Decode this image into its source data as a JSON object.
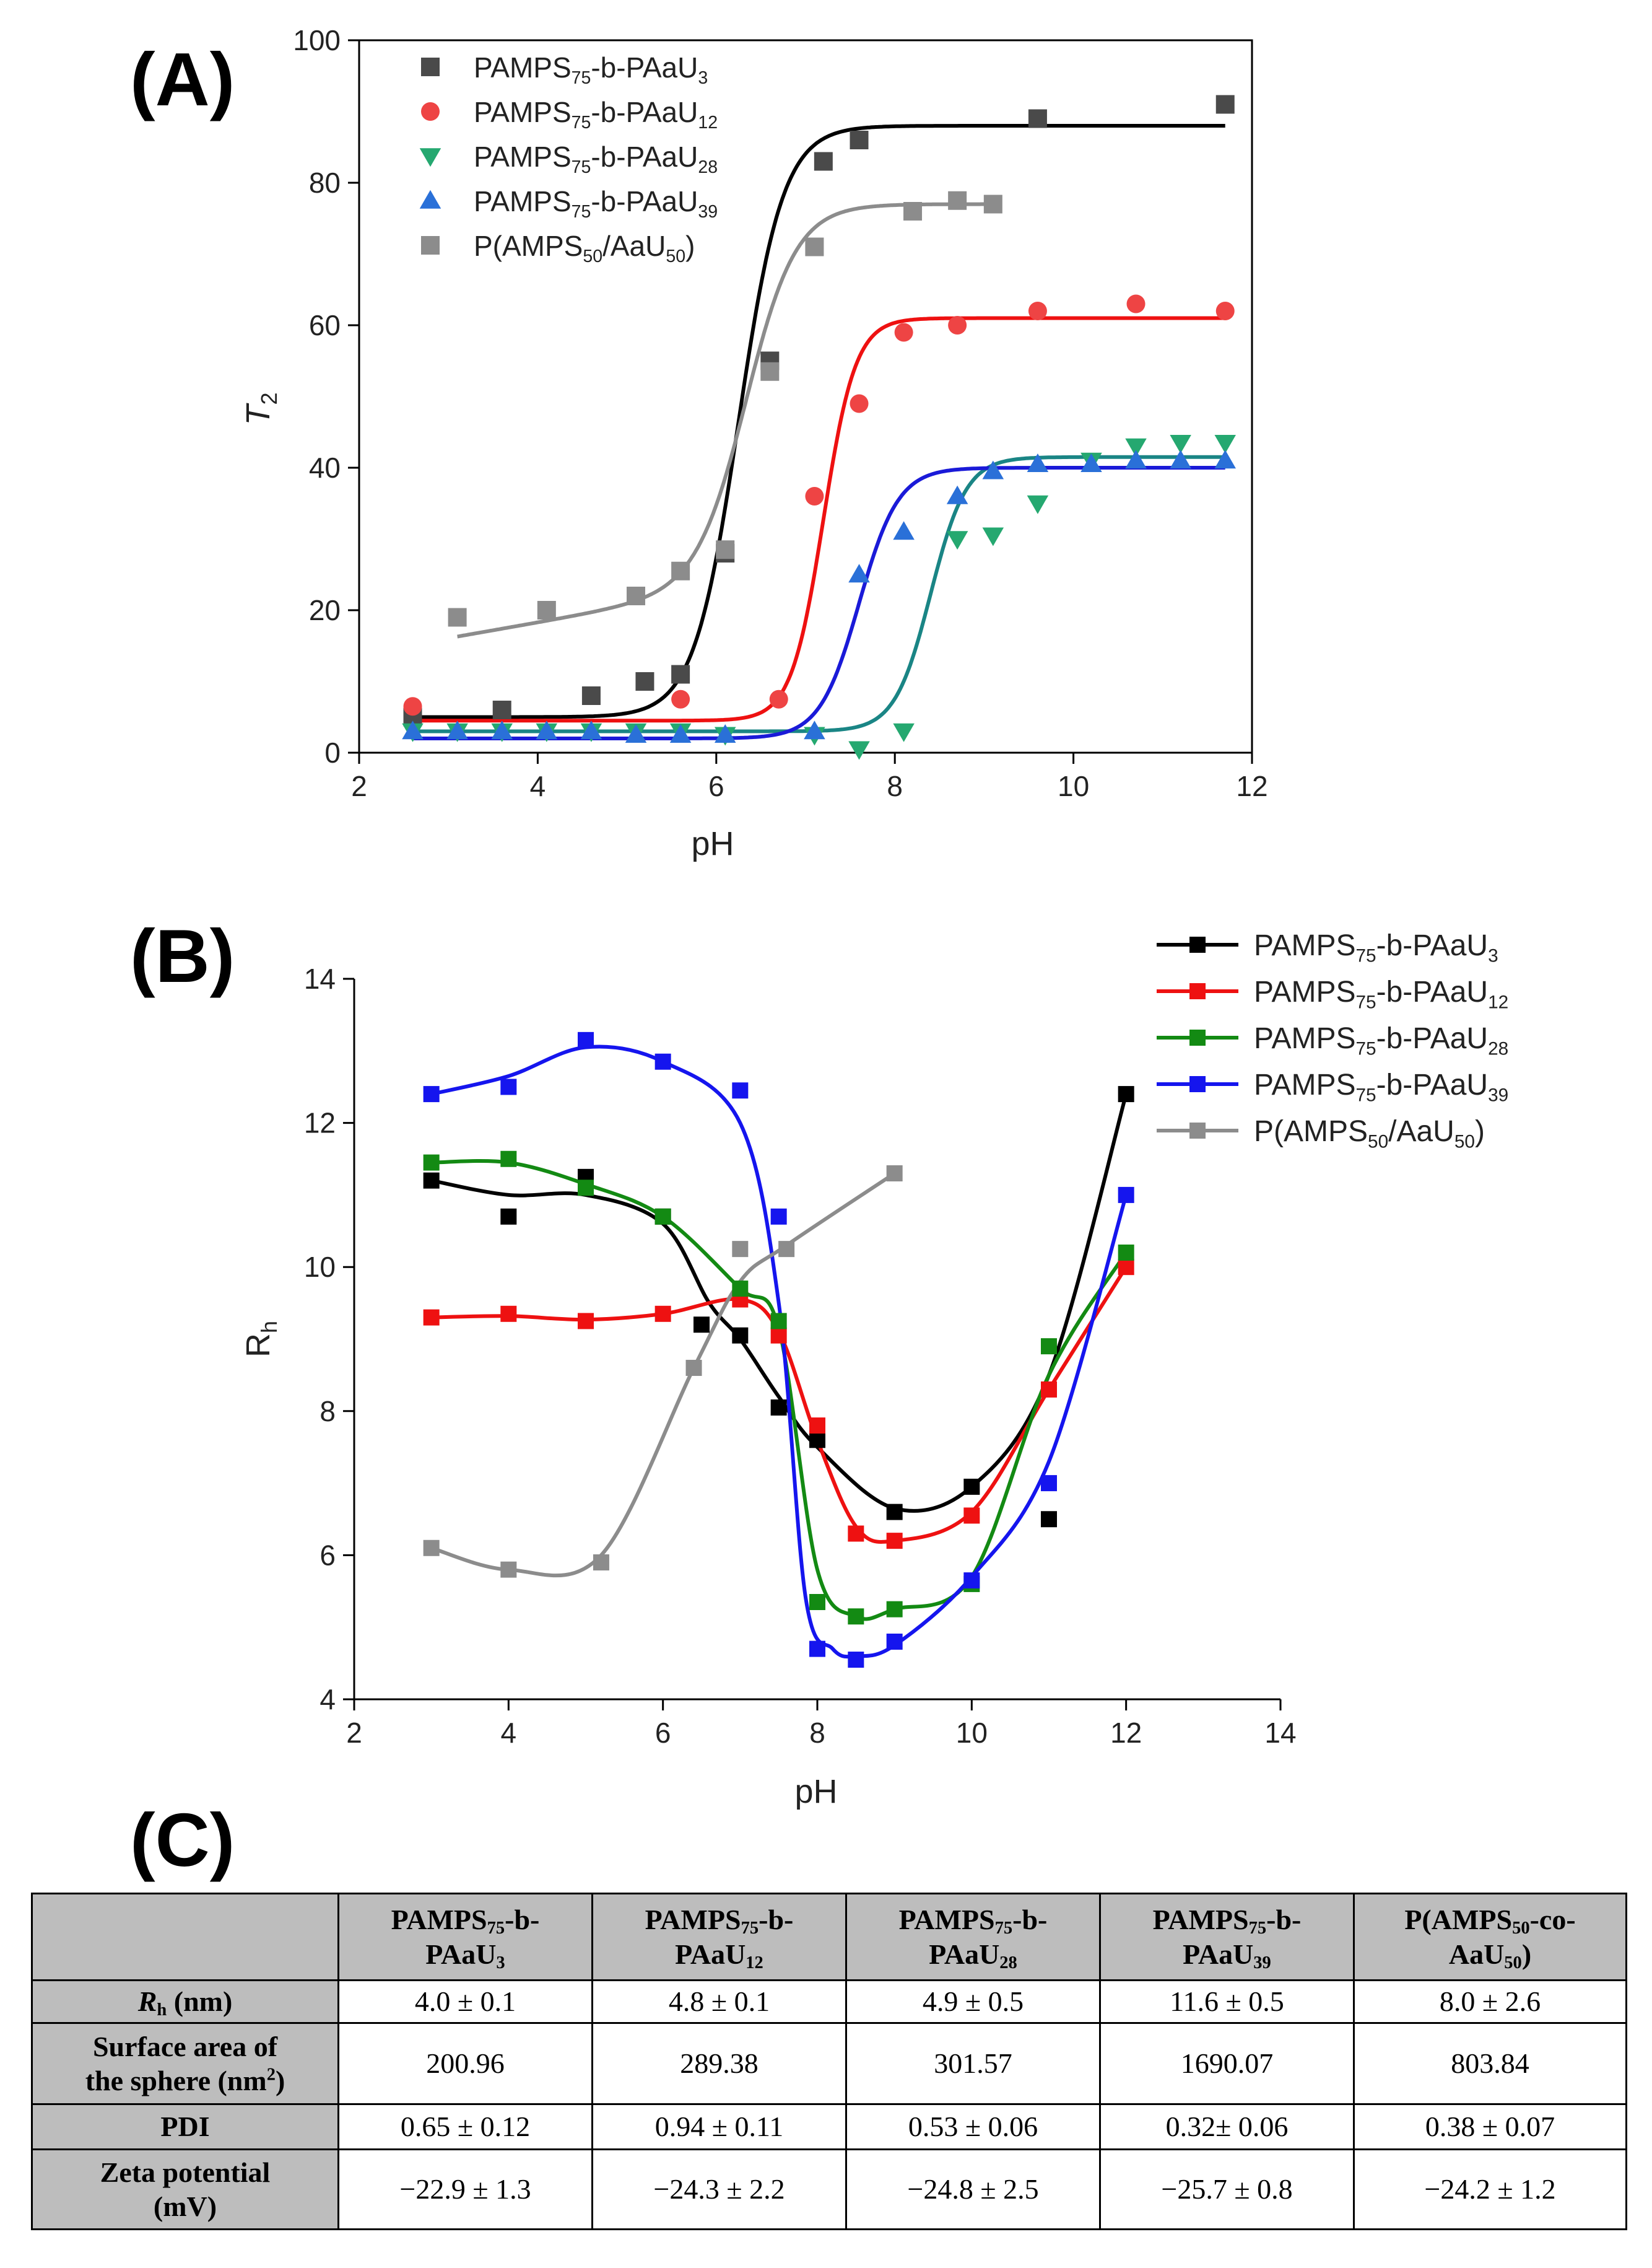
{
  "panel_labels": {
    "a": "(A)",
    "b": "(B)",
    "c": "(C)"
  },
  "chart_data": [
    {
      "panel": "(A)",
      "type": "scatter",
      "title": "",
      "xlabel": "pH",
      "ylabel": "T",
      "ylabel_sub": "2",
      "xlim": [
        2,
        12
      ],
      "ylim": [
        0,
        100
      ],
      "xticks": [
        2,
        4,
        6,
        8,
        10,
        12
      ],
      "yticks": [
        0,
        20,
        40,
        60,
        80,
        100
      ],
      "legend_position": "top-left",
      "series": [
        {
          "name_main": "PAMPS",
          "name_sub1": "75",
          "name_mid": "-b-PAaU",
          "name_sub2": "3",
          "name_end": "",
          "color": "#4a4a4a",
          "fit_color": "#000000",
          "marker": "square",
          "x": [
            2.6,
            3.6,
            4.6,
            5.2,
            5.6,
            6.1,
            6.6,
            7.2,
            7.6,
            9.6,
            11.7
          ],
          "y": [
            5,
            6,
            8,
            10,
            11,
            28,
            55,
            83,
            86,
            89,
            91
          ],
          "fit": {
            "kind": "sigmoid",
            "low": 5,
            "high": 88,
            "mid": 6.25,
            "width": 0.25,
            "x0": 2.6,
            "x1": 11.7
          }
        },
        {
          "name_main": "PAMPS",
          "name_sub1": "75",
          "name_mid": "-b-PAaU",
          "name_sub2": "12",
          "name_end": "",
          "color": "#ee4444",
          "fit_color": "#ee1111",
          "marker": "circle",
          "x": [
            2.6,
            5.6,
            6.7,
            7.1,
            7.6,
            8.1,
            8.7,
            9.6,
            10.7,
            11.7
          ],
          "y": [
            6.5,
            7.5,
            7.5,
            36,
            49,
            59,
            60,
            62,
            63,
            62
          ],
          "fit": {
            "kind": "sigmoid",
            "low": 4.5,
            "high": 61,
            "mid": 7.2,
            "width": 0.18,
            "x0": 2.6,
            "x1": 11.7
          }
        },
        {
          "name_main": "PAMPS",
          "name_sub1": "75",
          "name_mid": "-b-PAaU",
          "name_sub2": "28",
          "name_end": "",
          "color": "#25a870",
          "fit_color": "#1a8585",
          "marker": "triangle-down",
          "x": [
            2.6,
            3.1,
            3.6,
            4.1,
            4.6,
            5.1,
            5.6,
            6.1,
            7.1,
            7.6,
            8.1,
            8.7,
            9.1,
            9.6,
            10.2,
            10.7,
            11.2,
            11.7
          ],
          "y": [
            3,
            3,
            3,
            3,
            3,
            3,
            3,
            2.5,
            2.5,
            0.5,
            3,
            30,
            30.5,
            35,
            41,
            43,
            43.5,
            43.5
          ],
          "fit": {
            "kind": "sigmoid",
            "low": 3,
            "high": 41.5,
            "mid": 8.4,
            "width": 0.2,
            "x0": 2.6,
            "x1": 11.7
          }
        },
        {
          "name_main": "PAMPS",
          "name_sub1": "75",
          "name_mid": "-b-PAaU",
          "name_sub2": "39",
          "name_end": "",
          "color": "#2a70d8",
          "fit_color": "#1a1ad8",
          "marker": "triangle-up",
          "x": [
            2.6,
            3.1,
            3.6,
            4.1,
            4.6,
            5.1,
            5.6,
            6.1,
            7.1,
            7.6,
            8.1,
            8.7,
            9.1,
            9.6,
            10.2,
            10.7,
            11.2,
            11.7
          ],
          "y": [
            3,
            3,
            3,
            3,
            3,
            2.5,
            2.5,
            2.5,
            3,
            25,
            31,
            36,
            39.5,
            40.5,
            40.5,
            41,
            41,
            41
          ],
          "fit": {
            "kind": "sigmoid",
            "low": 2,
            "high": 40,
            "mid": 7.6,
            "width": 0.22,
            "x0": 2.6,
            "x1": 11.7
          }
        },
        {
          "name_main": "P(AMPS",
          "name_sub1": "50",
          "name_mid": "/AaU",
          "name_sub2": "50",
          "name_end": ")",
          "color": "#8c8c8c",
          "fit_color": "#8c8c8c",
          "marker": "square",
          "x": [
            3.1,
            4.1,
            5.1,
            5.6,
            6.1,
            6.6,
            7.1,
            8.2,
            8.7,
            9.1
          ],
          "y": [
            19,
            20,
            22,
            25.5,
            28.5,
            53.5,
            71,
            76,
            77.5,
            77
          ],
          "fit": {
            "kind": "sigmoid_linear",
            "low": 16.3,
            "slope": 2.2,
            "high": 77,
            "mid": 6.35,
            "width": 0.28,
            "x0": 3.1,
            "x1": 9.1
          }
        }
      ]
    },
    {
      "panel": "(B)",
      "type": "line",
      "title": "",
      "xlabel": "pH",
      "ylabel": "R",
      "ylabel_sub": "h",
      "xlim": [
        2,
        14
      ],
      "ylim": [
        4,
        14
      ],
      "xticks": [
        2,
        4,
        6,
        8,
        10,
        12,
        14
      ],
      "yticks": [
        4,
        6,
        8,
        10,
        12,
        14
      ],
      "legend_position": "top-right",
      "series": [
        {
          "name_main": "PAMPS",
          "name_sub1": "75",
          "name_mid": "-b-PAaU",
          "name_sub2": "3",
          "name_end": "",
          "color": "#000000",
          "x": [
            3,
            4,
            5,
            6,
            6.5,
            7,
            7.5,
            8,
            9,
            10,
            11,
            12
          ],
          "y": [
            11.2,
            10.7,
            11.25,
            10.7,
            9.2,
            9.05,
            8.05,
            7.6,
            6.6,
            6.95,
            6.5,
            12.4
          ],
          "curve": [
            [
              3,
              11.2
            ],
            [
              4,
              11.0
            ],
            [
              5,
              11.0
            ],
            [
              6,
              10.6
            ],
            [
              6.6,
              9.5
            ],
            [
              7,
              9.0
            ],
            [
              7.5,
              8.2
            ],
            [
              8,
              7.5
            ],
            [
              9,
              6.65
            ],
            [
              10,
              6.95
            ],
            [
              11,
              8.5
            ],
            [
              12,
              12.4
            ]
          ]
        },
        {
          "name_main": "PAMPS",
          "name_sub1": "75",
          "name_mid": "-b-PAaU",
          "name_sub2": "12",
          "name_end": "",
          "color": "#ee1111",
          "x": [
            3,
            4,
            5,
            6,
            7,
            7.5,
            8,
            8.5,
            9,
            10,
            11,
            12
          ],
          "y": [
            9.3,
            9.35,
            9.25,
            9.35,
            9.55,
            9.05,
            7.8,
            6.3,
            6.2,
            6.55,
            8.3,
            10.0
          ],
          "curve": [
            [
              3,
              9.3
            ],
            [
              4,
              9.32
            ],
            [
              5,
              9.27
            ],
            [
              6,
              9.35
            ],
            [
              7,
              9.55
            ],
            [
              7.5,
              9.1
            ],
            [
              8,
              7.6
            ],
            [
              8.5,
              6.4
            ],
            [
              9,
              6.2
            ],
            [
              10,
              6.6
            ],
            [
              11,
              8.3
            ],
            [
              12,
              10.0
            ]
          ]
        },
        {
          "name_main": "PAMPS",
          "name_sub1": "75",
          "name_mid": "-b-PAaU",
          "name_sub2": "28",
          "name_end": "",
          "color": "#138a13",
          "x": [
            3,
            4,
            5,
            6,
            7,
            7.5,
            8,
            8.5,
            9,
            10,
            11,
            12
          ],
          "y": [
            11.45,
            11.5,
            11.1,
            10.7,
            9.7,
            9.25,
            5.35,
            5.15,
            5.25,
            5.6,
            8.9,
            10.2
          ],
          "curve": [
            [
              3,
              11.45
            ],
            [
              4,
              11.45
            ],
            [
              5,
              11.15
            ],
            [
              6,
              10.7
            ],
            [
              7,
              9.7
            ],
            [
              7.5,
              9.15
            ],
            [
              8,
              5.8
            ],
            [
              8.5,
              5.15
            ],
            [
              9,
              5.25
            ],
            [
              10,
              5.7
            ],
            [
              11,
              8.5
            ],
            [
              12,
              10.2
            ]
          ]
        },
        {
          "name_main": "PAMPS",
          "name_sub1": "75",
          "name_mid": "-b-PAaU",
          "name_sub2": "39",
          "name_end": "",
          "color": "#1515ee",
          "x": [
            3,
            4,
            5,
            6,
            7,
            7.5,
            8,
            8.5,
            9,
            10,
            11,
            12
          ],
          "y": [
            12.4,
            12.5,
            13.15,
            12.85,
            12.45,
            10.7,
            4.7,
            4.55,
            4.8,
            5.65,
            7.0,
            11.0
          ],
          "curve": [
            [
              3,
              12.4
            ],
            [
              4,
              12.65
            ],
            [
              5,
              13.05
            ],
            [
              6,
              12.85
            ],
            [
              7,
              12.0
            ],
            [
              7.5,
              9.5
            ],
            [
              7.85,
              5.4
            ],
            [
              8.2,
              4.7
            ],
            [
              8.5,
              4.6
            ],
            [
              9,
              4.75
            ],
            [
              10,
              5.7
            ],
            [
              11,
              7.3
            ],
            [
              12,
              11.0
            ]
          ]
        },
        {
          "name_main": "P(AMPS",
          "name_sub1": "50",
          "name_mid": "/AaU",
          "name_sub2": "50",
          "name_end": ")",
          "color": "#8c8c8c",
          "x": [
            3,
            4,
            5.2,
            6.4,
            7,
            7.6,
            9
          ],
          "y": [
            6.1,
            5.8,
            5.9,
            8.6,
            10.25,
            10.25,
            11.3
          ],
          "curve": [
            [
              3,
              6.1
            ],
            [
              4,
              5.8
            ],
            [
              5.2,
              6.0
            ],
            [
              6.4,
              8.6
            ],
            [
              7,
              9.8
            ],
            [
              7.6,
              10.3
            ],
            [
              9,
              11.3
            ]
          ]
        }
      ]
    },
    {
      "panel": "(C)",
      "type": "table",
      "columns": [
        {
          "l1a": "PAMPS",
          "l1b": "75",
          "l1c": "-b-",
          "l2a": "PAaU",
          "l2b": "3",
          "l2c": ""
        },
        {
          "l1a": "PAMPS",
          "l1b": "75",
          "l1c": "-b-",
          "l2a": "PAaU",
          "l2b": "12",
          "l2c": ""
        },
        {
          "l1a": "PAMPS",
          "l1b": "75",
          "l1c": "-b-",
          "l2a": "PAaU",
          "l2b": "28",
          "l2c": ""
        },
        {
          "l1a": "PAMPS",
          "l1b": "75",
          "l1c": "-b-",
          "l2a": "PAaU",
          "l2b": "39",
          "l2c": ""
        },
        {
          "l1a": "P(AMPS",
          "l1b": "50",
          "l1c": "-co-",
          "l2a": "AaU",
          "l2b": "50",
          "l2c": ")"
        }
      ],
      "rows": [
        {
          "label_main": "R",
          "label_sub": "h",
          "label_end": " (nm)",
          "values": [
            "4.0 ± 0.1",
            "4.8 ± 0.1",
            "4.9 ± 0.5",
            "11.6 ± 0.5",
            "8.0 ± 2.6"
          ]
        },
        {
          "label_line1": "Surface area of",
          "label_line2": "the sphere (nm",
          "label_sup": "2",
          "label_end": ")",
          "values": [
            "200.96",
            "289.38",
            "301.57",
            "1690.07",
            "803.84"
          ]
        },
        {
          "label": "PDI",
          "values": [
            "0.65 ± 0.12",
            "0.94 ± 0.11",
            "0.53 ± 0.06",
            "0.32± 0.06",
            "0.38 ± 0.07"
          ]
        },
        {
          "label_line1": "Zeta potential",
          "label_line2": "(mV)",
          "values": [
            "−22.9 ± 1.3",
            "−24.3 ± 2.2",
            "−24.8 ± 2.5",
            "−25.7 ± 0.8",
            "−24.2 ± 1.2"
          ]
        }
      ]
    }
  ]
}
